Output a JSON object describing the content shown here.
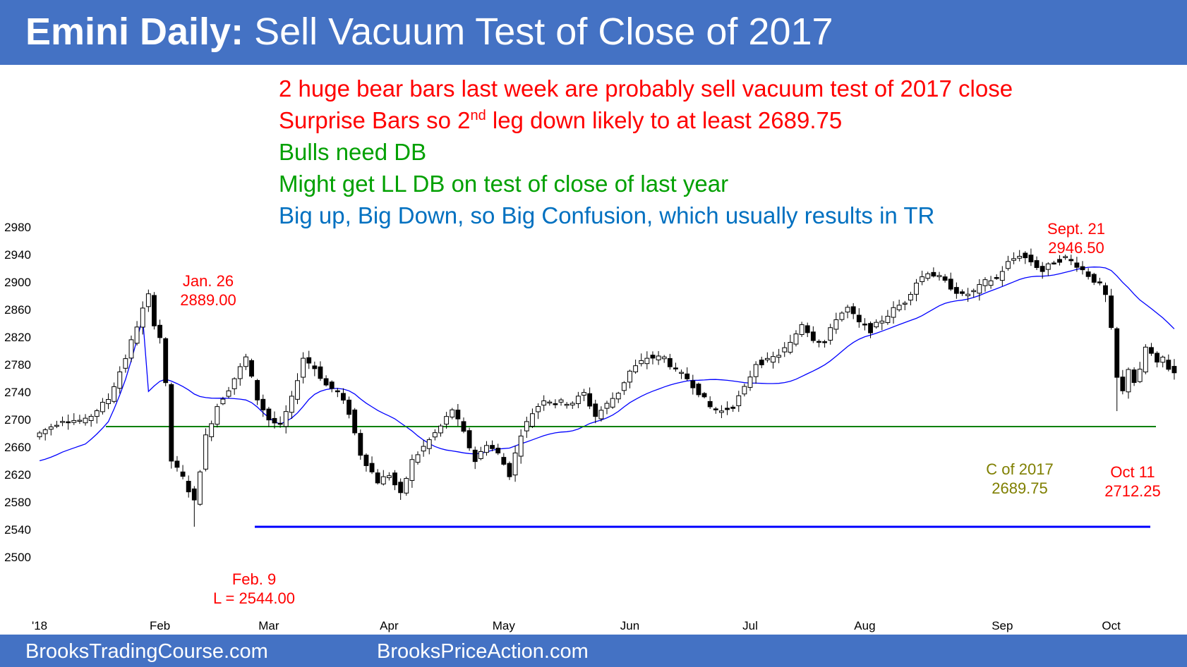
{
  "header": {
    "title_bold": "Emini Daily:",
    "title_rest": " Sell Vacuum Test of Close of 2017",
    "background": "#4472c4"
  },
  "notes": [
    {
      "text_before": "2 huge bear bars last week are probably sell vacuum test of 2017 close",
      "sup": "",
      "text_after": "",
      "color": "#ff0000"
    },
    {
      "text_before": "Surprise Bars so 2",
      "sup": "nd",
      "text_after": " leg down likely to at least 2689.75",
      "color": "#ff0000"
    },
    {
      "text_before": "Bulls need DB",
      "sup": "",
      "text_after": "",
      "color": "#00a000"
    },
    {
      "text_before": "Might get LL DB on test of close of last year",
      "sup": "",
      "text_after": "",
      "color": "#00a000"
    },
    {
      "text_before": "Big up, Big Down, so Big Confusion, which usually results in TR",
      "sup": "",
      "text_after": "",
      "color": "#0070c0"
    }
  ],
  "annotations": {
    "jan26": {
      "line1": "Jan. 26",
      "line2": "2889.00",
      "color": "#ff0000"
    },
    "sept21": {
      "line1": "Sept. 21",
      "line2": "2946.50",
      "color": "#ff0000"
    },
    "feb9": {
      "line1": "Feb. 9",
      "line2": "L = 2544.00",
      "color": "#ff0000"
    },
    "c2017": {
      "line1": "C of 2017",
      "line2": "2689.75",
      "color": "#7f7f00"
    },
    "oct11": {
      "line1": "Oct 11",
      "line2": "2712.25",
      "color": "#ff0000"
    }
  },
  "footer": {
    "left": "BrooksTradingCourse.com",
    "right": "BrooksPriceAction.com"
  },
  "chart_data": {
    "type": "candlestick",
    "title": "",
    "ylim": [
      2500,
      2980
    ],
    "yticks": [
      2500,
      2540,
      2580,
      2620,
      2660,
      2700,
      2740,
      2780,
      2820,
      2860,
      2900,
      2940,
      2980
    ],
    "xticks": [
      {
        "label": "'18",
        "bar": 0
      },
      {
        "label": "Feb",
        "bar": 21
      },
      {
        "label": "Mar",
        "bar": 40
      },
      {
        "label": "Apr",
        "bar": 61
      },
      {
        "label": "May",
        "bar": 81
      },
      {
        "label": "Jun",
        "bar": 103
      },
      {
        "label": "Jul",
        "bar": 124
      },
      {
        "label": "Aug",
        "bar": 144
      },
      {
        "label": "Sep",
        "bar": 168
      },
      {
        "label": "Oct",
        "bar": 187
      }
    ],
    "bar_count": 199,
    "reference_lines": [
      {
        "label": "C of 2017",
        "value": 2689.75,
        "color": "#008000"
      },
      {
        "label": "L = 2544.00",
        "value": 2544,
        "color": "#0000ff"
      }
    ],
    "moving_average_color": "#0000ff",
    "anchors": [
      {
        "bar": 0,
        "close": 2680
      },
      {
        "bar": 4,
        "close": 2700
      },
      {
        "bar": 8,
        "close": 2698
      },
      {
        "bar": 12,
        "close": 2730
      },
      {
        "bar": 15,
        "close": 2790
      },
      {
        "bar": 18,
        "close": 2860
      },
      {
        "bar": 19,
        "close": 2880
      },
      {
        "bar": 20,
        "close": 2840
      },
      {
        "bar": 21,
        "close": 2820
      },
      {
        "bar": 22,
        "close": 2750
      },
      {
        "bar": 23,
        "close": 2640
      },
      {
        "bar": 25,
        "close": 2615
      },
      {
        "bar": 27,
        "close": 2580
      },
      {
        "bar": 29,
        "close": 2675
      },
      {
        "bar": 31,
        "close": 2720
      },
      {
        "bar": 33,
        "close": 2745
      },
      {
        "bar": 36,
        "close": 2790
      },
      {
        "bar": 38,
        "close": 2730
      },
      {
        "bar": 40,
        "close": 2700
      },
      {
        "bar": 42,
        "close": 2690
      },
      {
        "bar": 44,
        "close": 2730
      },
      {
        "bar": 46,
        "close": 2790
      },
      {
        "bar": 48,
        "close": 2775
      },
      {
        "bar": 50,
        "close": 2750
      },
      {
        "bar": 52,
        "close": 2740
      },
      {
        "bar": 54,
        "close": 2710
      },
      {
        "bar": 56,
        "close": 2650
      },
      {
        "bar": 59,
        "close": 2610
      },
      {
        "bar": 61,
        "close": 2620
      },
      {
        "bar": 63,
        "close": 2590
      },
      {
        "bar": 65,
        "close": 2640
      },
      {
        "bar": 67,
        "close": 2660
      },
      {
        "bar": 70,
        "close": 2690
      },
      {
        "bar": 72,
        "close": 2715
      },
      {
        "bar": 74,
        "close": 2680
      },
      {
        "bar": 76,
        "close": 2640
      },
      {
        "bar": 78,
        "close": 2665
      },
      {
        "bar": 80,
        "close": 2650
      },
      {
        "bar": 82,
        "close": 2620
      },
      {
        "bar": 84,
        "close": 2680
      },
      {
        "bar": 86,
        "close": 2710
      },
      {
        "bar": 88,
        "close": 2730
      },
      {
        "bar": 90,
        "close": 2725
      },
      {
        "bar": 93,
        "close": 2725
      },
      {
        "bar": 95,
        "close": 2738
      },
      {
        "bar": 97,
        "close": 2705
      },
      {
        "bar": 99,
        "close": 2722
      },
      {
        "bar": 101,
        "close": 2740
      },
      {
        "bar": 103,
        "close": 2770
      },
      {
        "bar": 106,
        "close": 2790
      },
      {
        "bar": 109,
        "close": 2790
      },
      {
        "bar": 111,
        "close": 2770
      },
      {
        "bar": 113,
        "close": 2760
      },
      {
        "bar": 115,
        "close": 2740
      },
      {
        "bar": 117,
        "close": 2718
      },
      {
        "bar": 119,
        "close": 2712
      },
      {
        "bar": 121,
        "close": 2720
      },
      {
        "bar": 123,
        "close": 2745
      },
      {
        "bar": 125,
        "close": 2782
      },
      {
        "bar": 127,
        "close": 2785
      },
      {
        "bar": 129,
        "close": 2795
      },
      {
        "bar": 131,
        "close": 2810
      },
      {
        "bar": 133,
        "close": 2840
      },
      {
        "bar": 135,
        "close": 2818
      },
      {
        "bar": 137,
        "close": 2812
      },
      {
        "bar": 139,
        "close": 2848
      },
      {
        "bar": 141,
        "close": 2862
      },
      {
        "bar": 143,
        "close": 2840
      },
      {
        "bar": 145,
        "close": 2830
      },
      {
        "bar": 147,
        "close": 2845
      },
      {
        "bar": 149,
        "close": 2860
      },
      {
        "bar": 151,
        "close": 2872
      },
      {
        "bar": 153,
        "close": 2900
      },
      {
        "bar": 155,
        "close": 2915
      },
      {
        "bar": 157,
        "close": 2906
      },
      {
        "bar": 159,
        "close": 2893
      },
      {
        "bar": 161,
        "close": 2880
      },
      {
        "bar": 163,
        "close": 2886
      },
      {
        "bar": 165,
        "close": 2900
      },
      {
        "bar": 167,
        "close": 2906
      },
      {
        "bar": 169,
        "close": 2928
      },
      {
        "bar": 171,
        "close": 2940
      },
      {
        "bar": 173,
        "close": 2930
      },
      {
        "bar": 175,
        "close": 2916
      },
      {
        "bar": 177,
        "close": 2930
      },
      {
        "bar": 179,
        "close": 2935
      },
      {
        "bar": 181,
        "close": 2925
      },
      {
        "bar": 183,
        "close": 2910
      },
      {
        "bar": 185,
        "close": 2895
      },
      {
        "bar": 186,
        "close": 2880
      },
      {
        "bar": 187,
        "close": 2830
      },
      {
        "bar": 188,
        "close": 2760
      },
      {
        "bar": 189,
        "close": 2740
      },
      {
        "bar": 190,
        "close": 2775
      },
      {
        "bar": 191,
        "close": 2755
      },
      {
        "bar": 192,
        "close": 2770
      },
      {
        "bar": 193,
        "close": 2805
      },
      {
        "bar": 194,
        "close": 2795
      },
      {
        "bar": 195,
        "close": 2780
      },
      {
        "bar": 196,
        "close": 2790
      },
      {
        "bar": 197,
        "close": 2775
      },
      {
        "bar": 198,
        "close": 2768
      }
    ]
  }
}
